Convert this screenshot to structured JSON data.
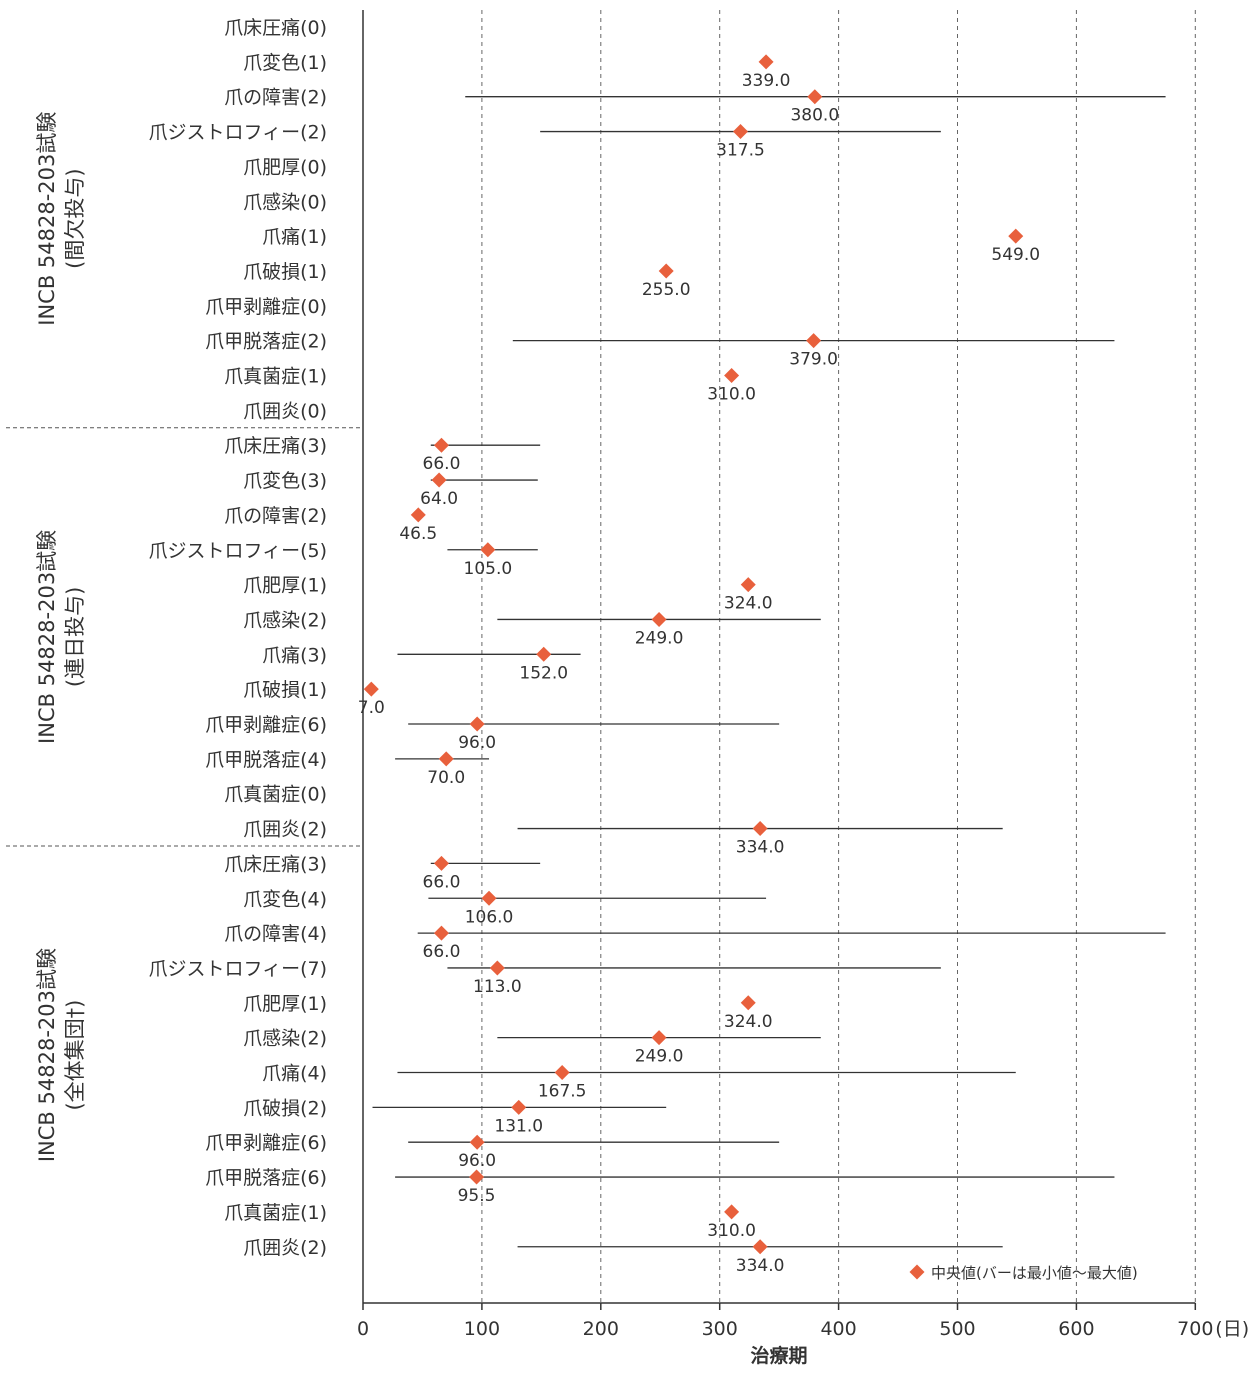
{
  "chart_data": {
    "type": "scatter",
    "orientation": "horizontal",
    "xlabel": "治療期",
    "x_unit": "(日)",
    "xlim": [
      0,
      700
    ],
    "xticks": [
      0,
      100,
      200,
      300,
      400,
      500,
      600,
      700
    ],
    "grid": "vertical dashed",
    "legend": {
      "label": "中央値(バーは最小値～最大値)",
      "position": "bottom-right"
    },
    "colors": {
      "marker": "#E8603C",
      "bar": "#333333",
      "grid": "#666666"
    },
    "groups": [
      {
        "label_lines": [
          "INCB 54828-203試験",
          "(間欠投与)"
        ],
        "items": [
          {
            "label": "爪床圧痛(0)",
            "median": null,
            "min": null,
            "max": null,
            "value_label": ""
          },
          {
            "label": "爪変色(1)",
            "median": 339.0,
            "min": null,
            "max": null,
            "value_label": "339.0"
          },
          {
            "label": "爪の障害(2)",
            "median": 380.0,
            "min": 86,
            "max": 675,
            "value_label": "380.0"
          },
          {
            "label": "爪ジストロフィー(2)",
            "median": 317.5,
            "min": 149,
            "max": 486,
            "value_label": "317.5"
          },
          {
            "label": "爪肥厚(0)",
            "median": null,
            "min": null,
            "max": null,
            "value_label": ""
          },
          {
            "label": "爪感染(0)",
            "median": null,
            "min": null,
            "max": null,
            "value_label": ""
          },
          {
            "label": "爪痛(1)",
            "median": 549.0,
            "min": null,
            "max": null,
            "value_label": "549.0"
          },
          {
            "label": "爪破損(1)",
            "median": 255.0,
            "min": null,
            "max": null,
            "value_label": "255.0"
          },
          {
            "label": "爪甲剥離症(0)",
            "median": null,
            "min": null,
            "max": null,
            "value_label": ""
          },
          {
            "label": "爪甲脱落症(2)",
            "median": 379.0,
            "min": 126,
            "max": 632,
            "value_label": "379.0"
          },
          {
            "label": "爪真菌症(1)",
            "median": 310.0,
            "min": null,
            "max": null,
            "value_label": "310.0"
          },
          {
            "label": "爪囲炎(0)",
            "median": null,
            "min": null,
            "max": null,
            "value_label": ""
          }
        ]
      },
      {
        "label_lines": [
          "INCB 54828-203試験",
          "(連日投与)"
        ],
        "items": [
          {
            "label": "爪床圧痛(3)",
            "median": 66.0,
            "min": 57,
            "max": 149,
            "value_label": "66.0"
          },
          {
            "label": "爪変色(3)",
            "median": 64.0,
            "min": 57,
            "max": 147,
            "value_label": "64.0"
          },
          {
            "label": "爪の障害(2)",
            "median": 46.5,
            "min": null,
            "max": null,
            "value_label": "46.5"
          },
          {
            "label": "爪ジストロフィー(5)",
            "median": 105.0,
            "min": 71,
            "max": 147,
            "value_label": "105.0"
          },
          {
            "label": "爪肥厚(1)",
            "median": 324.0,
            "min": null,
            "max": null,
            "value_label": "324.0"
          },
          {
            "label": "爪感染(2)",
            "median": 249.0,
            "min": 113,
            "max": 385,
            "value_label": "249.0"
          },
          {
            "label": "爪痛(3)",
            "median": 152.0,
            "min": 29,
            "max": 183,
            "value_label": "152.0"
          },
          {
            "label": "爪破損(1)",
            "median": 7.0,
            "min": null,
            "max": null,
            "value_label": "7.0"
          },
          {
            "label": "爪甲剥離症(6)",
            "median": 96.0,
            "min": 38,
            "max": 350,
            "value_label": "96.0"
          },
          {
            "label": "爪甲脱落症(4)",
            "median": 70.0,
            "min": 27,
            "max": 106,
            "value_label": "70.0"
          },
          {
            "label": "爪真菌症(0)",
            "median": null,
            "min": null,
            "max": null,
            "value_label": ""
          },
          {
            "label": "爪囲炎(2)",
            "median": 334.0,
            "min": 130,
            "max": 538,
            "value_label": "334.0"
          }
        ]
      },
      {
        "label_lines": [
          "INCB 54828-203試験",
          "(全体集団†)"
        ],
        "items": [
          {
            "label": "爪床圧痛(3)",
            "median": 66.0,
            "min": 57,
            "max": 149,
            "value_label": "66.0"
          },
          {
            "label": "爪変色(4)",
            "median": 106.0,
            "min": 55,
            "max": 339,
            "value_label": "106.0"
          },
          {
            "label": "爪の障害(4)",
            "median": 66.0,
            "min": 46,
            "max": 675,
            "value_label": "66.0"
          },
          {
            "label": "爪ジストロフィー(7)",
            "median": 113.0,
            "min": 71,
            "max": 486,
            "value_label": "113.0"
          },
          {
            "label": "爪肥厚(1)",
            "median": 324.0,
            "min": null,
            "max": null,
            "value_label": "324.0"
          },
          {
            "label": "爪感染(2)",
            "median": 249.0,
            "min": 113,
            "max": 385,
            "value_label": "249.0"
          },
          {
            "label": "爪痛(4)",
            "median": 167.5,
            "min": 29,
            "max": 549,
            "value_label": "167.5"
          },
          {
            "label": "爪破損(2)",
            "median": 131.0,
            "min": 8,
            "max": 255,
            "value_label": "131.0"
          },
          {
            "label": "爪甲剥離症(6)",
            "median": 96.0,
            "min": 38,
            "max": 350,
            "value_label": "96.0"
          },
          {
            "label": "爪甲脱落症(6)",
            "median": 95.5,
            "min": 27,
            "max": 632,
            "value_label": "95.5"
          },
          {
            "label": "爪真菌症(1)",
            "median": 310.0,
            "min": null,
            "max": null,
            "value_label": "310.0"
          },
          {
            "label": "爪囲炎(2)",
            "median": 334.0,
            "min": 130,
            "max": 538,
            "value_label": "334.0"
          }
        ]
      }
    ]
  }
}
